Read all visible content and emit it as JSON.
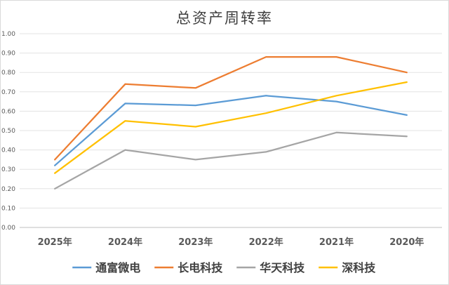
{
  "chart_data": {
    "type": "line",
    "title": "总资产周转率",
    "xlabel": "",
    "ylabel": "",
    "categories": [
      "2025年",
      "2024年",
      "2023年",
      "2022年",
      "2021年",
      "2020年"
    ],
    "ylim": [
      0,
      1.0
    ],
    "yticks": [
      "0.00",
      "0.10",
      "0.20",
      "0.30",
      "0.40",
      "0.50",
      "0.60",
      "0.70",
      "0.80",
      "0.90",
      "1.00"
    ],
    "grid": true,
    "legend_position": "bottom",
    "series": [
      {
        "name": "通富微电",
        "color": "#5b9bd5",
        "values": [
          0.32,
          0.64,
          0.63,
          0.68,
          0.65,
          0.58
        ]
      },
      {
        "name": "长电科技",
        "color": "#ed7d31",
        "values": [
          0.35,
          0.74,
          0.72,
          0.88,
          0.88,
          0.8
        ]
      },
      {
        "name": "华天科技",
        "color": "#a5a5a5",
        "values": [
          0.2,
          0.4,
          0.35,
          0.39,
          0.49,
          0.47
        ]
      },
      {
        "name": "深科技",
        "color": "#ffc000",
        "values": [
          0.28,
          0.55,
          0.52,
          0.59,
          0.68,
          0.75
        ]
      }
    ]
  }
}
